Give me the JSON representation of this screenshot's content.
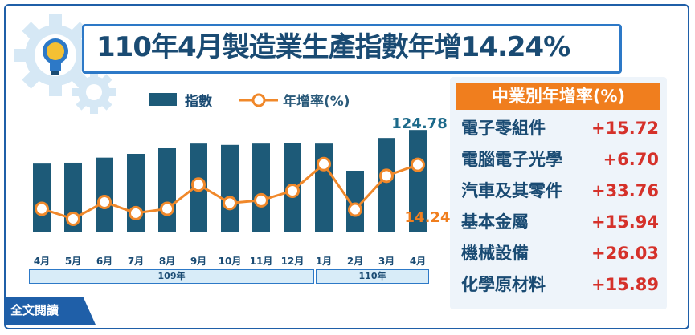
{
  "title": "110年4月製造業生產指數年增14.24%",
  "legend": {
    "bar_label": "指數",
    "line_label": "年增率(%)"
  },
  "annotations": {
    "last_index": "124.78",
    "last_growth": "14.24"
  },
  "year_labels": {
    "y109": "109年",
    "y110": "110年"
  },
  "full_text_button": "全文閱讀",
  "industry_panel": {
    "header": "中業別年增率(%)",
    "rows": [
      {
        "name": "電子零組件",
        "value": "+15.72"
      },
      {
        "name": "電腦電子光學",
        "value": "+6.70"
      },
      {
        "name": "汽車及其零件",
        "value": "+33.76"
      },
      {
        "name": "基本金屬",
        "value": "+15.94"
      },
      {
        "name": "機械設備",
        "value": "+26.03"
      },
      {
        "name": "化學原材料",
        "value": "+15.89"
      }
    ]
  },
  "colors": {
    "bar": "#1d5a78",
    "line": "#f0882a",
    "accent": "#2d79c7",
    "positive": "#d5312a"
  },
  "chart_data": {
    "type": "bar",
    "categories": [
      "4月",
      "5月",
      "6月",
      "7月",
      "8月",
      "9月",
      "10月",
      "11月",
      "12月",
      "1月",
      "2月",
      "3月",
      "4月"
    ],
    "series": [
      {
        "name": "指數",
        "type": "bar",
        "values": [
          106.8,
          107.3,
          110.0,
          112.0,
          115.0,
          117.5,
          116.8,
          117.5,
          117.8,
          117.5,
          103.0,
          120.5,
          124.78
        ]
      },
      {
        "name": "年增率(%)",
        "type": "line",
        "values": [
          -1.9,
          -5.6,
          0.6,
          -3.5,
          -1.9,
          7.0,
          0.2,
          1.2,
          4.7,
          14.5,
          -2.2,
          10.2,
          14.24
        ]
      }
    ],
    "bar_ylim": [
      70,
      130
    ],
    "line_ylim": [
      -20,
      30
    ],
    "grid": false,
    "legend_position": "top"
  }
}
